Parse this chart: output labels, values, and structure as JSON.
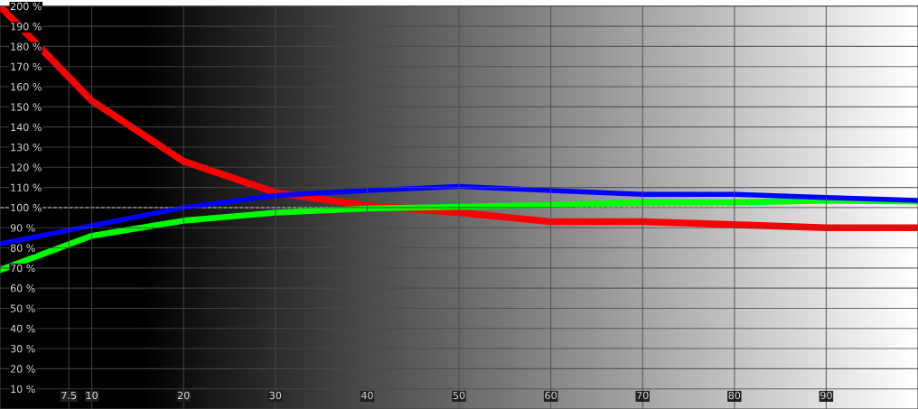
{
  "chart_data": {
    "type": "line",
    "x": [
      0,
      10,
      20,
      30,
      40,
      50,
      60,
      70,
      80,
      90,
      100
    ],
    "series": [
      {
        "color": "#ff0000",
        "values": [
          200,
          153,
          123,
          107.5,
          101,
          97.5,
          93,
          93,
          91.5,
          90,
          90
        ]
      },
      {
        "color": "#00ff00",
        "values": [
          69,
          86,
          93.5,
          97.5,
          99.5,
          100.4,
          101.3,
          102.6,
          102.6,
          103.5,
          103
        ]
      },
      {
        "color": "#0000ff",
        "values": [
          82,
          91,
          100,
          106,
          108.5,
          110.5,
          108.5,
          106.6,
          106.6,
          105,
          103.5
        ]
      }
    ],
    "xlim": [
      0,
      100
    ],
    "xticks": [
      7.5,
      10,
      20,
      30,
      40,
      50,
      60,
      70,
      80,
      90
    ],
    "ylim": [
      0,
      200
    ],
    "yticks": [
      {
        "value": 10,
        "label": "10 %"
      },
      {
        "value": 20,
        "label": "20 %"
      },
      {
        "value": 30,
        "label": "30 %"
      },
      {
        "value": 40,
        "label": "40 %"
      },
      {
        "value": 50,
        "label": "50 %"
      },
      {
        "value": 60,
        "label": "60 %"
      },
      {
        "value": 70,
        "label": "70 %"
      },
      {
        "value": 80,
        "label": "80 %"
      },
      {
        "value": 90,
        "label": "90 %"
      },
      {
        "value": 100,
        "label": "100 %"
      },
      {
        "value": 110,
        "label": "110 %"
      },
      {
        "value": 120,
        "label": "120 %"
      },
      {
        "value": 130,
        "label": "130 %"
      },
      {
        "value": 140,
        "label": "140 %"
      },
      {
        "value": 150,
        "label": "150 %"
      },
      {
        "value": 160,
        "label": "160 %"
      },
      {
        "value": 170,
        "label": "170 %"
      },
      {
        "value": 180,
        "label": "180 %"
      },
      {
        "value": 190,
        "label": "190 %"
      },
      {
        "value": 200,
        "label": "200 %"
      }
    ],
    "ref_lines": [
      {
        "axis": "y",
        "value": 100,
        "color": "#ffffff",
        "line_style": "dashed"
      }
    ],
    "grid": true,
    "marker": "none",
    "line_style": "solid"
  }
}
